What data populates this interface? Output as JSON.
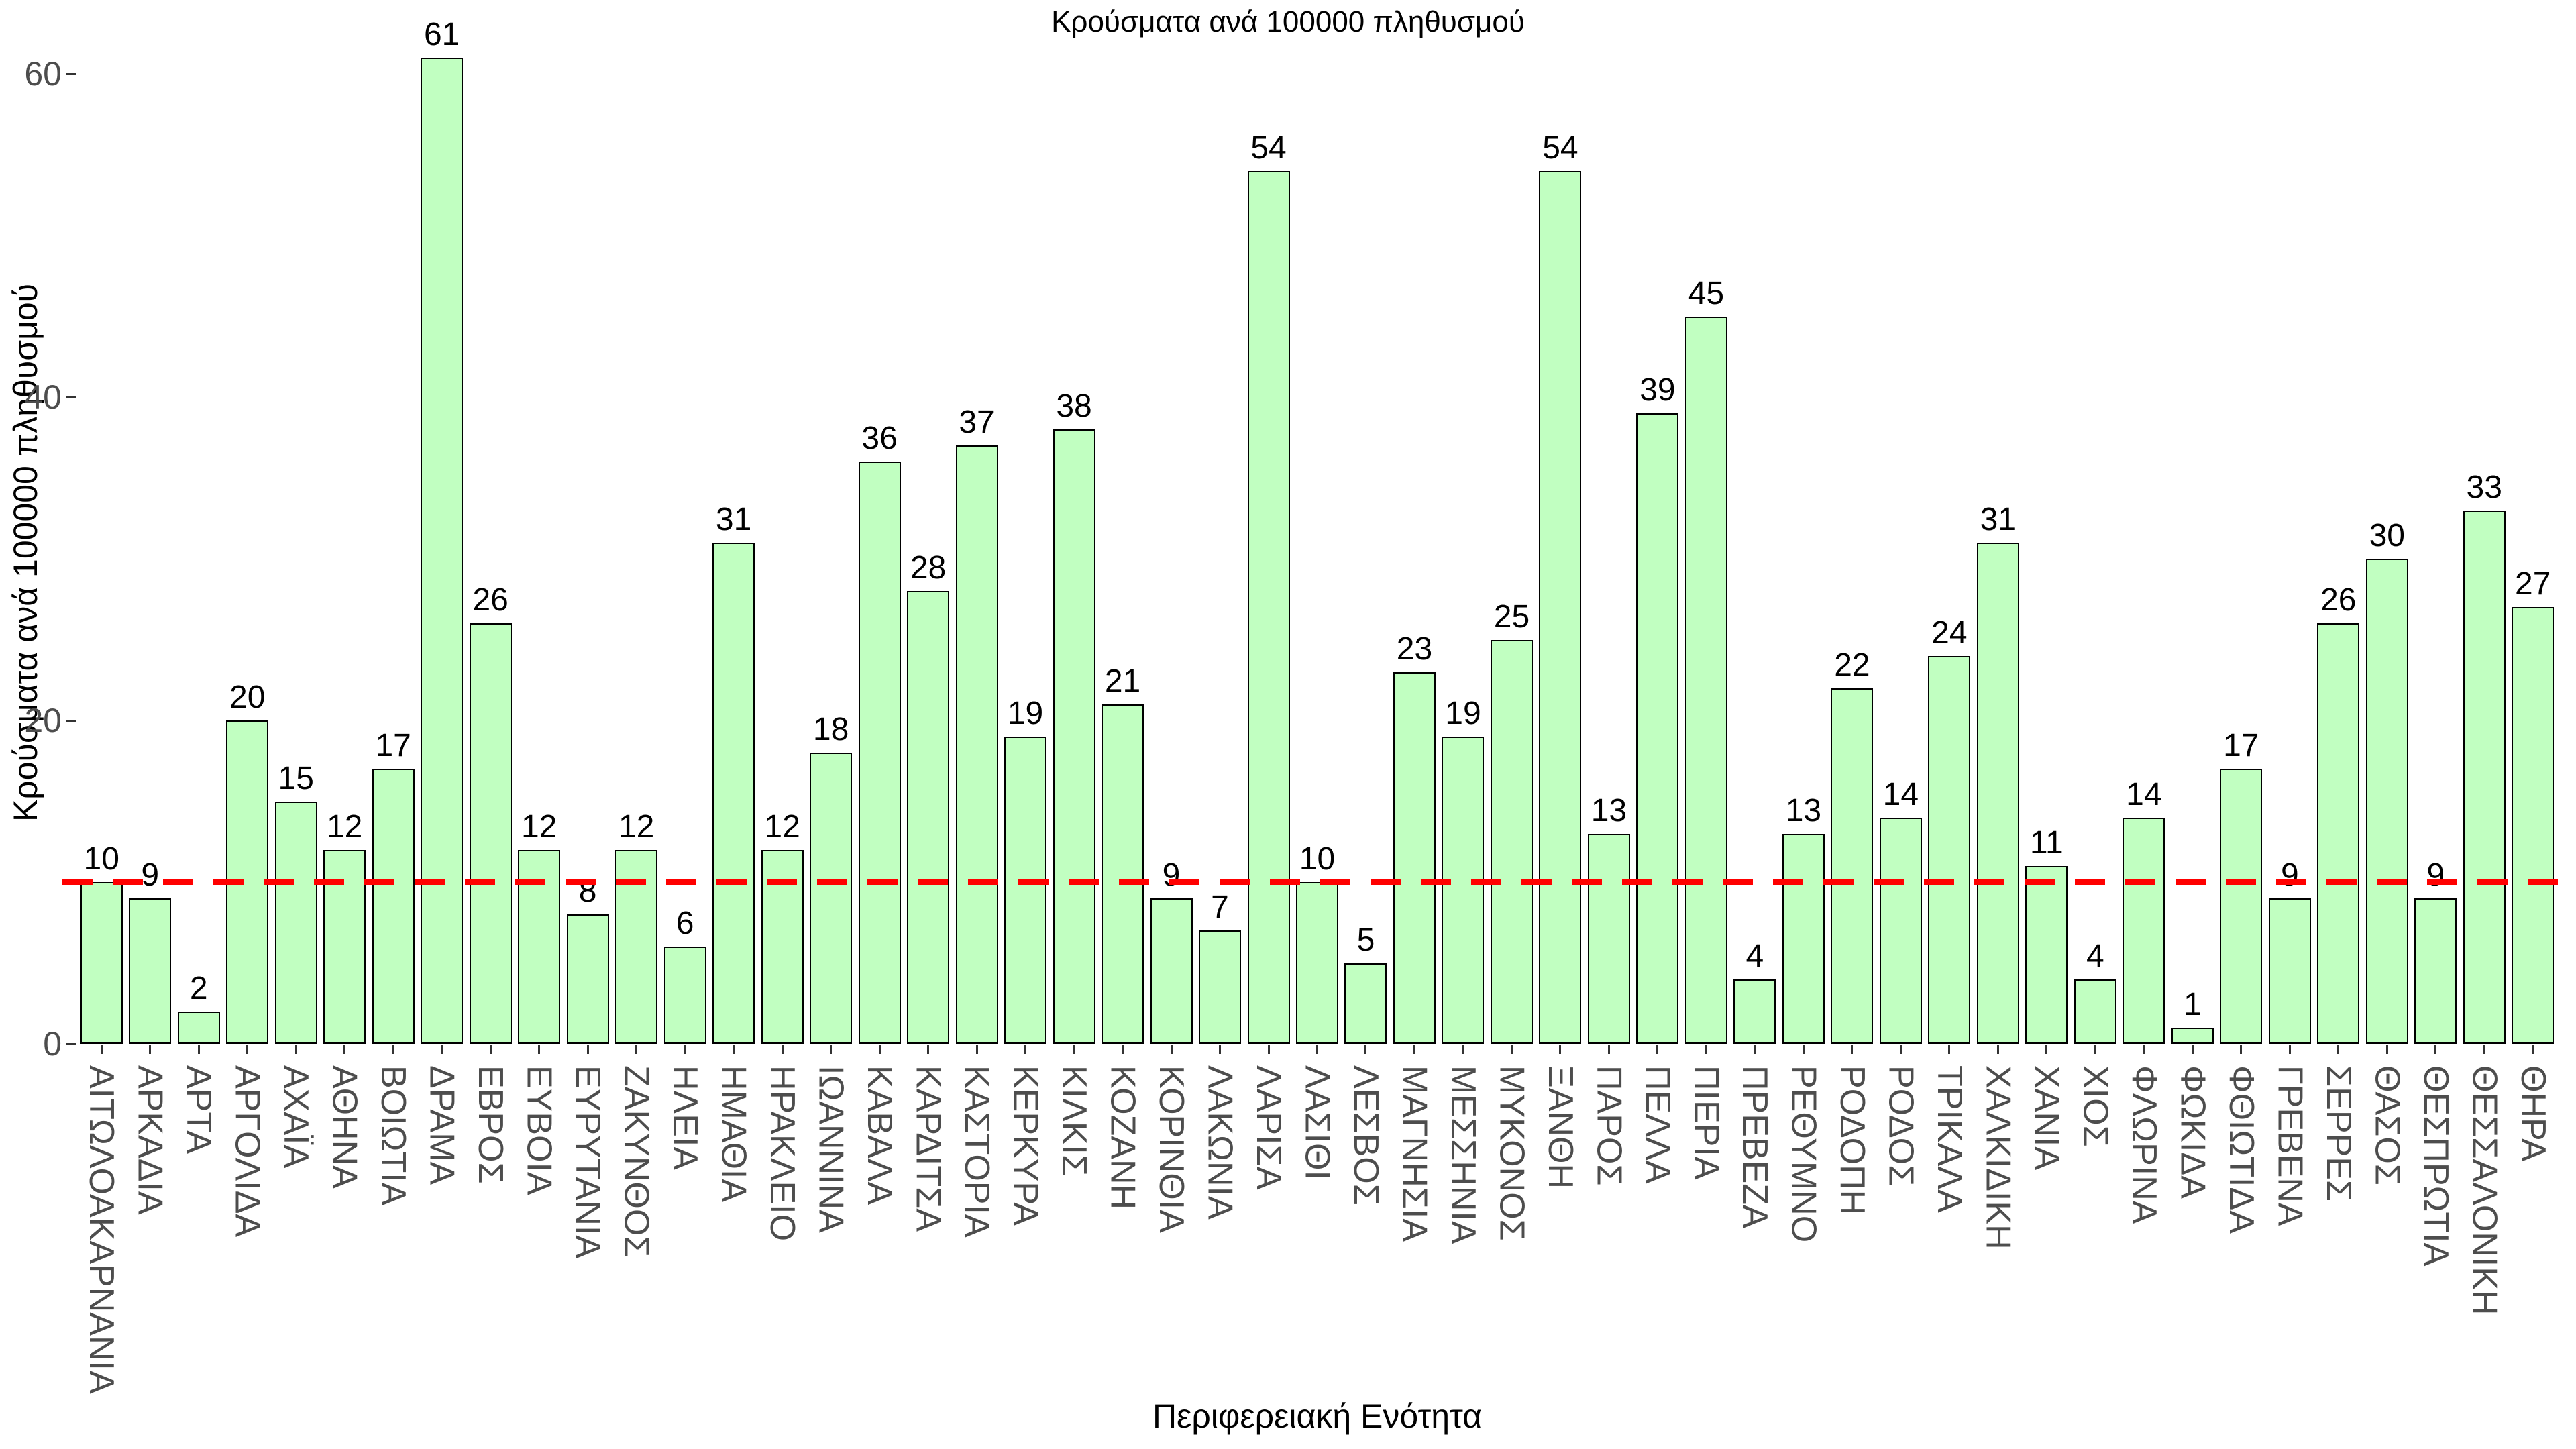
{
  "title": "Κρούσματα ανά 100000 πληθυσμού",
  "chart_data": {
    "type": "bar",
    "title": "Κρούσματα ανά 100000 πληθυσμού",
    "xlabel": "Περιφερειακή Ενότητα",
    "ylabel": "Κρούσματα ανά 100000 πληθυσμού",
    "categories": [
      "ΑΙΤΩΛΟΑΚΑΡΝΑΝΙΑ",
      "ΑΡΚΑΔΙΑ",
      "ΑΡΤΑ",
      "ΑΡΓΟΛΙΔΑ",
      "ΑΧΑΪΑ",
      "ΑΘΗΝΑ",
      "ΒΟΙΩΤΙΑ",
      "ΔΡΑΜΑ",
      "ΕΒΡΟΣ",
      "ΕΥΒΟΙΑ",
      "ΕΥΡΥΤΑΝΙΑ",
      "ΖΑΚΥΝΘΟΣ",
      "ΗΛΕΙΑ",
      "ΗΜΑΘΙΑ",
      "ΗΡΑΚΛΕΙΟ",
      "ΙΩΑΝΝΙΝΑ",
      "ΚΑΒΑΛΑ",
      "ΚΑΡΔΙΤΣΑ",
      "ΚΑΣΤΟΡΙΑ",
      "ΚΕΡΚΥΡΑ",
      "ΚΙΛΚΙΣ",
      "ΚΟΖΑΝΗ",
      "ΚΟΡΙΝΘΙΑ",
      "ΛΑΚΩΝΙΑ",
      "ΛΑΡΙΣΑ",
      "ΛΑΣΙΘΙ",
      "ΛΕΣΒΟΣ",
      "ΜΑΓΝΗΣΙΑ",
      "ΜΕΣΣΗΝΙΑ",
      "ΜΥΚΟΝΟΣ",
      "ΞΑΝΘΗ",
      "ΠΑΡΟΣ",
      "ΠΕΛΛΑ",
      "ΠΙΕΡΙΑ",
      "ΠΡΕΒΕΖΑ",
      "ΡΕΘΥΜΝΟ",
      "ΡΟΔΟΠΗ",
      "ΡΟΔΟΣ",
      "ΤΡΙΚΑΛΑ",
      "ΧΑΛΚΙΔΙΚΗ",
      "ΧΑΝΙΑ",
      "ΧΙΟΣ",
      "ΦΛΩΡΙΝΑ",
      "ΦΩΚΙΔΑ",
      "ΦΘΙΩΤΙΔΑ",
      "ΓΡΕΒΕΝΑ",
      "ΣΕΡΡΕΣ",
      "ΘΑΣΟΣ",
      "ΘΕΣΠΡΩΤΙΑ",
      "ΘΕΣΣΑΛΟΝΙΚΗ",
      "ΘΗΡΑ"
    ],
    "values": [
      10,
      9,
      2,
      20,
      15,
      12,
      17,
      61,
      26,
      12,
      8,
      12,
      6,
      31,
      12,
      18,
      36,
      28,
      37,
      19,
      38,
      21,
      9,
      7,
      54,
      10,
      5,
      23,
      19,
      25,
      54,
      13,
      39,
      45,
      4,
      13,
      22,
      14,
      24,
      31,
      11,
      4,
      14,
      1,
      17,
      9,
      26,
      30,
      9,
      33,
      27
    ],
    "bar_labels": true,
    "yticks": [
      0,
      20,
      40,
      60
    ],
    "ylim": [
      0,
      62
    ],
    "grid": false,
    "legend_position": "none",
    "reference_line": {
      "value": 10,
      "style": "dashed",
      "color": "#ff0000"
    }
  },
  "colors": {
    "background": "#ffffff",
    "bar_fill": "#c1ffc1",
    "bar_border": "#000000",
    "axis_tick_text": "#4d4d4d",
    "text": "#000000",
    "reference_line": "#ff0000"
  }
}
